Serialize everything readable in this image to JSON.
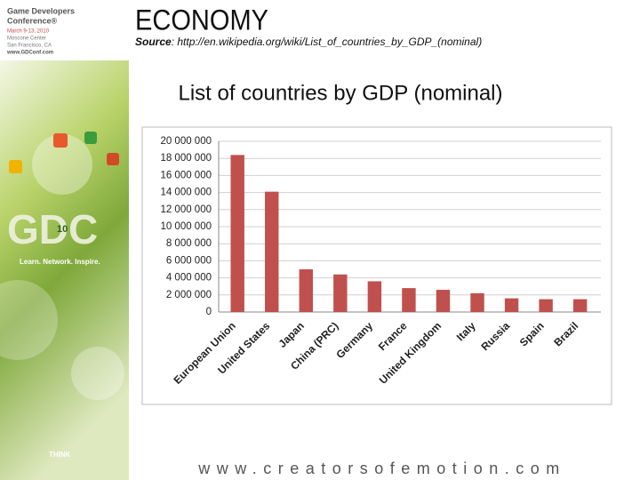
{
  "slide": {
    "title": "ECONOMY",
    "source_label": "Source",
    "source_text": ": http://en.wikipedia.org/wiki/List_of_countries_by_GDP_(nominal)",
    "footer": "www.creatorsofemotion.com",
    "logo": {
      "line1": "Game Developers",
      "line2": "Conference®",
      "dates": "March 9-13, 2010",
      "venue": "Moscone Center",
      "city": "San Francisco, CA",
      "url": "www.GDConf.com",
      "mark": "GDC",
      "year": "10",
      "tagline": "Learn. Network. Inspire.",
      "sponsor": "THINK"
    }
  },
  "chart_data": {
    "type": "bar",
    "title": "List of countries by GDP (nominal)",
    "categories": [
      "European Union",
      "United States",
      "Japan",
      "China (PRC)",
      "Germany",
      "France",
      "United Kingdom",
      "Italy",
      "Russia",
      "Spain",
      "Brazil"
    ],
    "values": [
      18400000,
      14100000,
      5000000,
      4400000,
      3600000,
      2800000,
      2600000,
      2200000,
      1600000,
      1500000,
      1500000
    ],
    "color": "#c0504d",
    "ylim": [
      0,
      20000000
    ],
    "yticks": [
      0,
      {
        "value": 2000000,
        "label": "2 000 000"
      },
      {
        "value": 4000000,
        "label": "4 000 000"
      },
      {
        "value": 6000000,
        "label": "6 000 000"
      },
      {
        "value": 8000000,
        "label": "8 000 000"
      },
      {
        "value": 10000000,
        "label": "10 000 000"
      },
      {
        "value": 12000000,
        "label": "12 000 000"
      },
      {
        "value": 14000000,
        "label": "14 000 000"
      },
      {
        "value": 16000000,
        "label": "16 000 000"
      },
      {
        "value": 18000000,
        "label": "18 000 000"
      },
      {
        "value": 20000000,
        "label": "20 000 000"
      }
    ],
    "grid": true
  }
}
